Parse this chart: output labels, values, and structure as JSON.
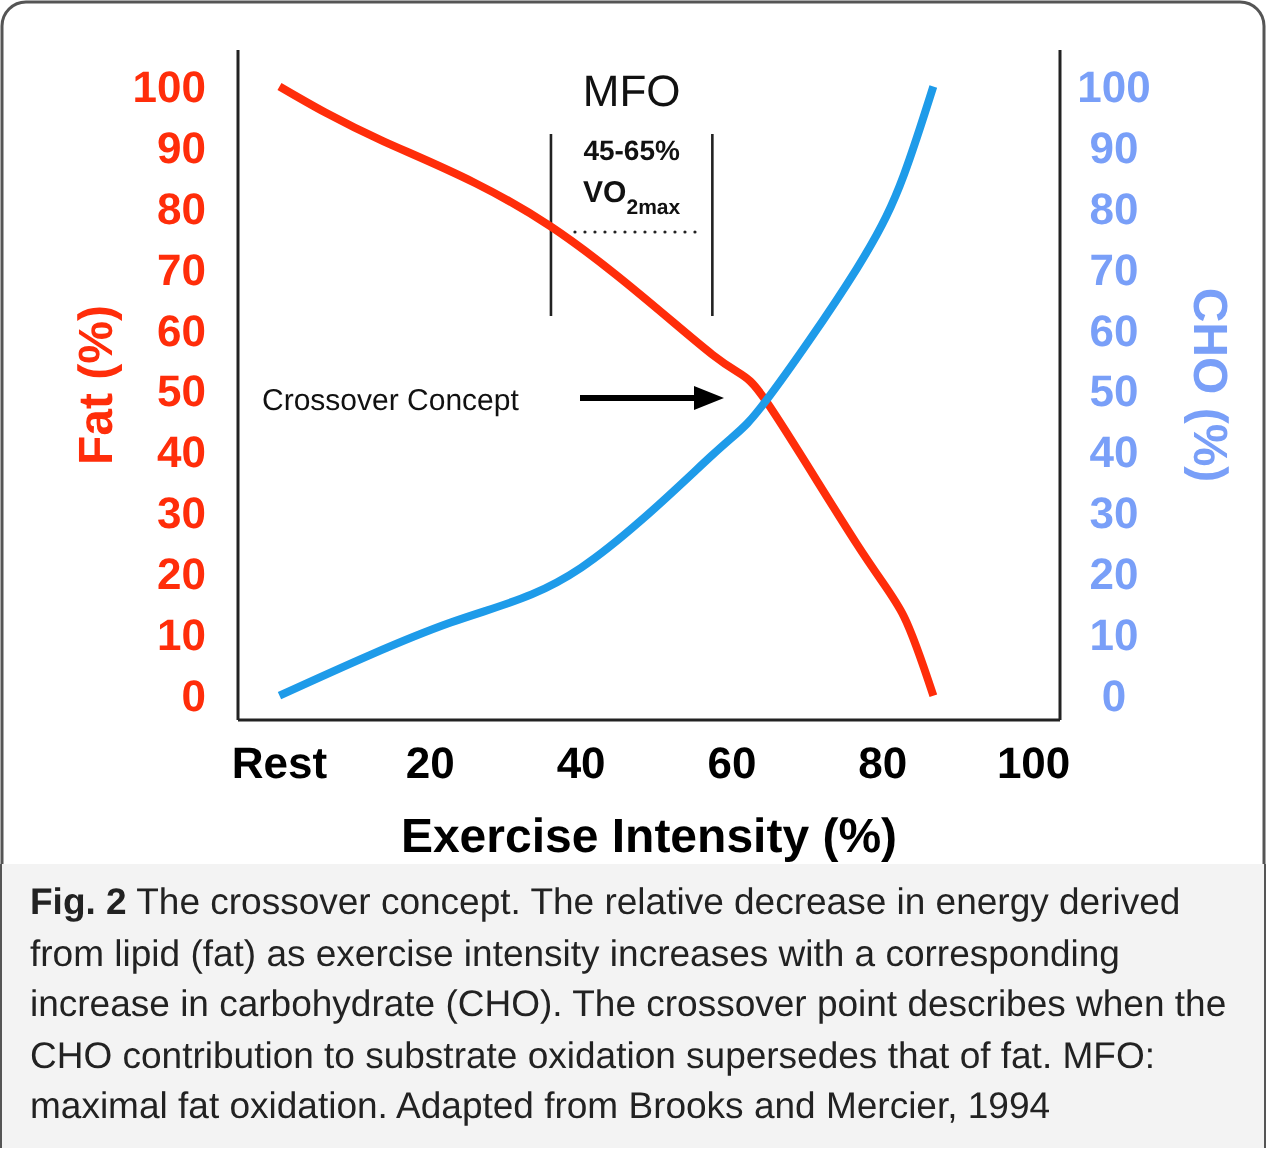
{
  "chart_data": {
    "type": "line",
    "xlabel": "Exercise Intensity (%)",
    "ylabel": "Fat (%)",
    "y2label": "CHO (%)",
    "xlim": [
      -5.5,
      103.5
    ],
    "xticks": [
      {
        "value": 0,
        "label": "Rest"
      },
      20,
      40,
      60,
      80,
      100
    ],
    "ylim": [
      -4,
      106
    ],
    "yticks": [
      0,
      10,
      20,
      30,
      40,
      50,
      60,
      70,
      80,
      90,
      100
    ],
    "y2lim": [
      -4,
      106
    ],
    "y2ticks": [
      0,
      10,
      20,
      30,
      40,
      50,
      60,
      70,
      80,
      90,
      100
    ],
    "series": [
      {
        "color": "#ff2d0a",
        "x": [
          0,
          13.8,
          36,
          57.4,
          64.5,
          76.5,
          82.8,
          86.7
        ],
        "values": [
          100,
          91,
          77,
          56,
          48.4,
          25,
          13,
          0
        ]
      },
      {
        "color": "#1e9be9",
        "axis": "y2",
        "x": [
          0,
          22.7,
          40,
          57.4,
          64.5,
          76.5,
          82.8,
          86.7
        ],
        "values": [
          0,
          12,
          21,
          39.5,
          48.4,
          70,
          85.5,
          100
        ]
      }
    ],
    "annotations": [
      "MFO",
      "45-65%",
      "VO$_{2max}$",
      "Crossover Concept",
      "Fig. 2",
      "The crossover concept. The relative decrease in energy derived from lipid (fat) as exercise intensity increases with a corresponding increase in carbohydrate (CHO). The crossover point describes when the CHO contribution to substrate oxidation supersedes that of fat. MFO: maximal fat oxidation. Adapted from Brooks and Mercier, 1994"
    ]
  }
}
